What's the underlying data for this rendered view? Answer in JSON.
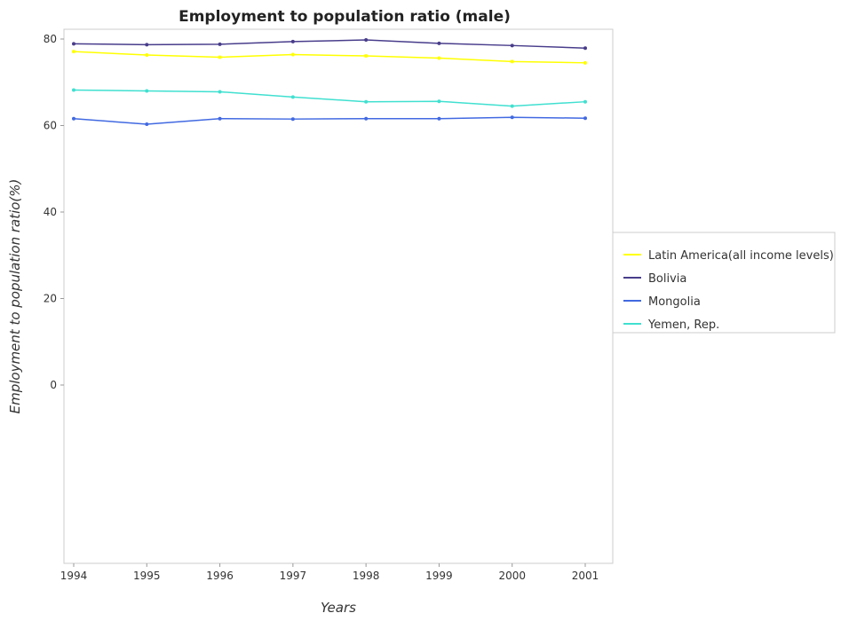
{
  "chart_data": {
    "type": "line",
    "title": "Employment to population ratio (male)",
    "xlabel": "Years",
    "ylabel": "Employment to population ratio(%)",
    "x": [
      "1994",
      "1995",
      "1996",
      "1997",
      "1998",
      "1999",
      "2000",
      "2001"
    ],
    "ylim": [
      0,
      80
    ],
    "yticks": [
      0,
      20,
      40,
      60,
      80
    ],
    "grid": false,
    "legend_position": "right",
    "series": [
      {
        "name": "Latin America(all income levels)",
        "color": "#ffff00",
        "values": [
          77.1,
          76.3,
          75.8,
          76.4,
          76.1,
          75.6,
          74.8,
          74.5
        ]
      },
      {
        "name": "Bolivia",
        "color": "#483d8b",
        "values": [
          78.9,
          78.7,
          78.8,
          79.4,
          79.8,
          79.0,
          78.5,
          77.9
        ]
      },
      {
        "name": "Mongolia",
        "color": "#4169e1",
        "values": [
          61.6,
          60.3,
          61.6,
          61.5,
          61.6,
          61.6,
          61.9,
          61.7
        ]
      },
      {
        "name": "Yemen, Rep.",
        "color": "#40e0d0",
        "values": [
          68.2,
          68.0,
          67.8,
          66.6,
          65.5,
          65.6,
          64.5,
          65.5
        ]
      }
    ]
  }
}
